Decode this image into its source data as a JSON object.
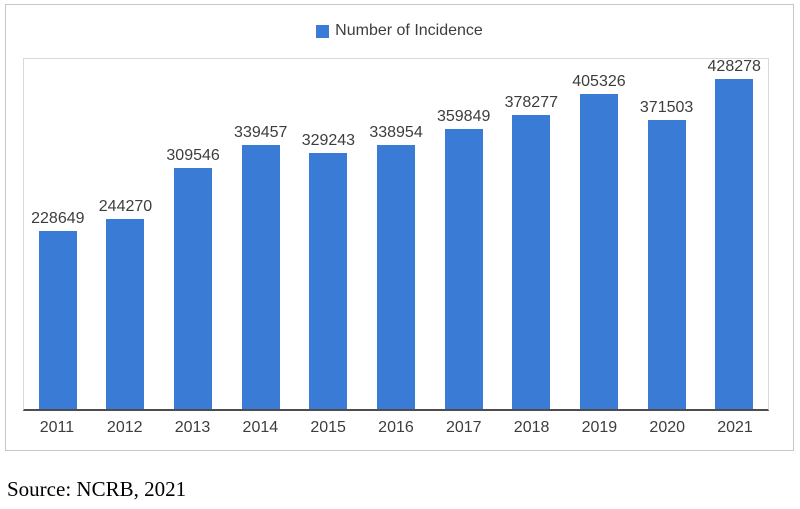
{
  "chart_data": {
    "type": "bar",
    "title": "",
    "legend": "Number of Incidence",
    "legend_position": "top-center",
    "categories": [
      "2011",
      "2012",
      "2013",
      "2014",
      "2015",
      "2016",
      "2017",
      "2018",
      "2019",
      "2020",
      "2021"
    ],
    "values": [
      228649,
      244270,
      309546,
      339457,
      329243,
      338954,
      359849,
      378277,
      405326,
      371503,
      428278
    ],
    "xlabel": "",
    "ylabel": "",
    "ylim": [
      0,
      450000
    ],
    "grid": false,
    "y_axis_labels_visible": false,
    "data_labels_visible": true
  },
  "colors": {
    "bar": "#3a7cd5",
    "frame_border": "#c6c6c6",
    "plot_border": "#d9d9d9",
    "axis_line": "#4d4d4d",
    "label_text": "#3d3d3d"
  },
  "source_note": "Source: NCRB, 2021"
}
